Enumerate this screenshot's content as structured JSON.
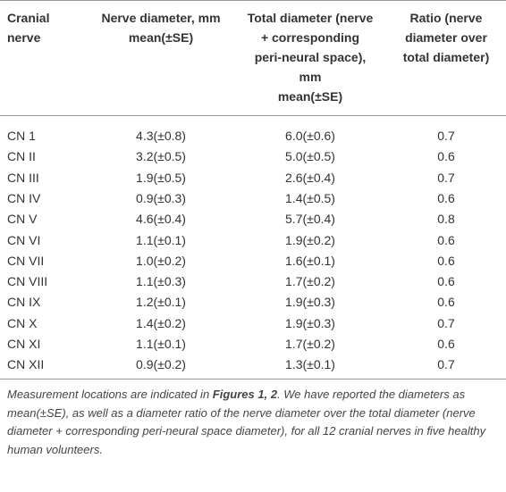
{
  "table": {
    "header": [
      [
        "Cranial",
        "nerve"
      ],
      [
        "Nerve diameter, mm",
        "mean(±SE)"
      ],
      [
        "Total diameter (nerve",
        "+ corresponding",
        "peri-neural space),",
        "mm",
        "mean(±SE)"
      ],
      [
        "Ratio (nerve",
        "diameter over",
        "total diameter)"
      ]
    ],
    "rows": [
      [
        "CN 1",
        "4.3(±0.8)",
        "6.0(±0.6)",
        "0.7"
      ],
      [
        "CN II",
        "3.2(±0.5)",
        "5.0(±0.5)",
        "0.6"
      ],
      [
        "CN III",
        "1.9(±0.5)",
        "2.6(±0.4)",
        "0.7"
      ],
      [
        "CN IV",
        "0.9(±0.3)",
        "1.4(±0.5)",
        "0.6"
      ],
      [
        "CN V",
        "4.6(±0.4)",
        "5.7(±0.4)",
        "0.8"
      ],
      [
        "CN VI",
        "1.1(±0.1)",
        "1.9(±0.2)",
        "0.6"
      ],
      [
        "CN VII",
        "1.0(±0.2)",
        "1.6(±0.1)",
        "0.6"
      ],
      [
        "CN VIII",
        "1.1(±0.3)",
        "1.7(±0.2)",
        "0.6"
      ],
      [
        "CN IX",
        "1.2(±0.1)",
        "1.9(±0.3)",
        "0.6"
      ],
      [
        "CN X",
        "1.4(±0.2)",
        "1.9(±0.3)",
        "0.7"
      ],
      [
        "CN XI",
        "1.1(±0.1)",
        "1.7(±0.2)",
        "0.6"
      ],
      [
        "CN XII",
        "0.9(±0.2)",
        "1.3(±0.1)",
        "0.7"
      ]
    ],
    "footnote": [
      "Measurement locations are indicated in ",
      "Figures 1, 2",
      ". We have reported the diameters as mean(±SE), as well as a diameter ratio of the nerve diameter over the total diameter (nerve diameter + corresponding peri-neural space diameter), for all 12 cranial nerves in five healthy human volunteers."
    ]
  }
}
